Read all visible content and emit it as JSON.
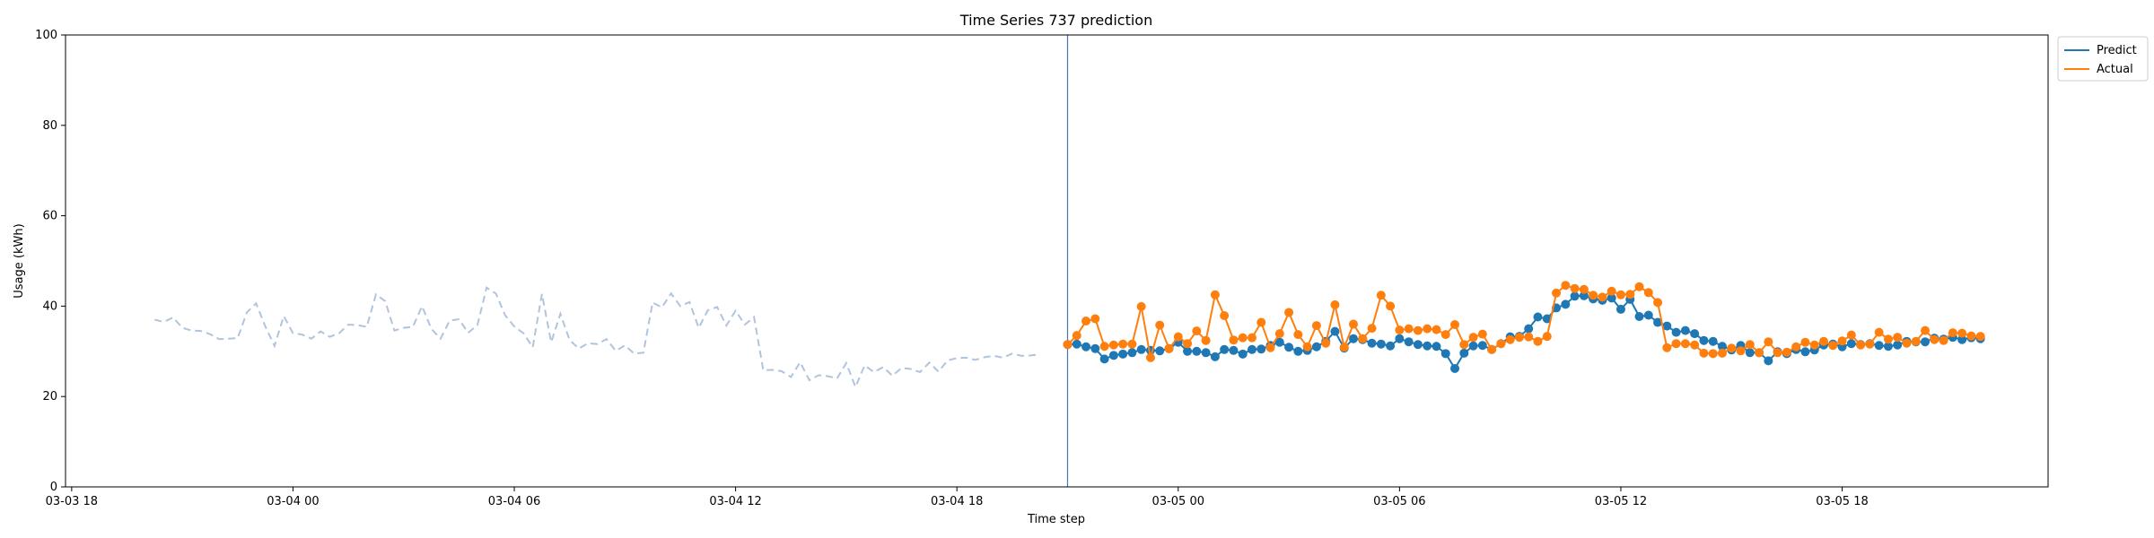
{
  "chart_data": {
    "type": "line",
    "title": "Time Series 737 prediction",
    "xlabel": "Time step",
    "ylabel": "Usage (kWh)",
    "ylim": [
      0,
      100
    ],
    "yticks": [
      0,
      20,
      40,
      60,
      80,
      100
    ],
    "xticks": [
      "03-03 18",
      "03-04 00",
      "03-04 06",
      "03-04 12",
      "03-04 18",
      "03-05 00",
      "03-05 06",
      "03-05 12",
      "03-05 18"
    ],
    "time_step": "15 min",
    "legend": {
      "placement": "upper-right-outside",
      "entries": [
        "Predict",
        "Actual"
      ]
    },
    "colors": {
      "history": "#b0c4de",
      "predict": "#1f77b4",
      "actual": "#ff7f0e",
      "divider": "#4c72b0"
    },
    "prediction_start": "03-04 21:00",
    "series": [
      {
        "name": "",
        "role": "history",
        "start": "03-03 20:15",
        "values": [
          37.0,
          36.5,
          37.5,
          35.2,
          34.6,
          34.5,
          33.8,
          32.7,
          32.8,
          32.9,
          38.6,
          40.6,
          35.5,
          31.2,
          37.8,
          34.0,
          33.7,
          32.8,
          34.4,
          33.2,
          34.0,
          35.9,
          35.8,
          35.4,
          42.6,
          41.1,
          34.6,
          35.2,
          35.4,
          40.0,
          35.0,
          32.8,
          36.8,
          37.1,
          34.1,
          35.8,
          44.1,
          42.8,
          38.0,
          35.5,
          34.0,
          30.9,
          42.7,
          32.0,
          38.3,
          32.5,
          30.6,
          31.8,
          31.6,
          32.7,
          30.1,
          31.3,
          29.5,
          29.7,
          40.8,
          39.7,
          42.8,
          40.0,
          40.9,
          35.2,
          39.1,
          39.8,
          35.7,
          39.0,
          35.9,
          37.6,
          25.8,
          25.9,
          25.6,
          24.3,
          27.6,
          23.6,
          24.7,
          24.5,
          24.0,
          27.4,
          22.1,
          26.9,
          25.4,
          26.5,
          24.6,
          26.3,
          26.1,
          25.4,
          27.5,
          25.5,
          28.0,
          28.5,
          28.6,
          28.1,
          28.7,
          29.0,
          28.6,
          29.5,
          29.0,
          29.1,
          29.3
        ]
      },
      {
        "name": "Predict",
        "role": "predict",
        "start": "03-04 21:00",
        "values": [
          31.5,
          31.6,
          31.0,
          30.6,
          28.3,
          29.1,
          29.4,
          29.7,
          30.4,
          30.2,
          30.1,
          30.6,
          32.0,
          30.0,
          30.0,
          29.7,
          28.8,
          30.4,
          30.2,
          29.4,
          30.4,
          30.5,
          31.3,
          32.0,
          30.9,
          30.0,
          30.2,
          31.0,
          32.2,
          34.4,
          30.7,
          32.8,
          32.6,
          31.8,
          31.6,
          31.2,
          32.8,
          32.1,
          31.5,
          31.2,
          31.1,
          29.5,
          26.2,
          29.6,
          31.2,
          31.3,
          30.4,
          31.7,
          33.2,
          33.3,
          35.0,
          37.6,
          37.2,
          39.6,
          40.4,
          42.2,
          42.3,
          41.6,
          41.3,
          41.8,
          39.3,
          41.5,
          37.7,
          38.0,
          36.4,
          35.6,
          34.2,
          34.6,
          33.9,
          32.4,
          32.2,
          31.1,
          30.3,
          31.3,
          29.7,
          29.7,
          27.9,
          29.9,
          29.5,
          30.4,
          29.9,
          30.3,
          31.4,
          31.6,
          31.0,
          31.7,
          31.5,
          31.7,
          31.3,
          31.1,
          31.4,
          32.2,
          32.1,
          32.1,
          32.9,
          32.7,
          33.1,
          32.6,
          33.0,
          32.8
        ]
      },
      {
        "name": "Actual",
        "role": "actual",
        "start": "03-04 21:00",
        "values": [
          31.5,
          33.5,
          36.7,
          37.2,
          31.1,
          31.4,
          31.6,
          31.6,
          39.9,
          28.6,
          35.8,
          30.6,
          33.2,
          31.7,
          34.5,
          32.4,
          42.5,
          37.9,
          32.5,
          33.0,
          33.0,
          36.4,
          30.8,
          33.9,
          38.6,
          33.7,
          31.0,
          35.7,
          31.8,
          40.3,
          30.9,
          36.0,
          32.8,
          35.1,
          42.4,
          40.0,
          34.7,
          35.0,
          34.6,
          35.0,
          34.8,
          33.7,
          35.9,
          31.5,
          33.1,
          33.8,
          30.4,
          31.7,
          32.6,
          33.1,
          33.2,
          32.2,
          33.3,
          42.9,
          44.6,
          43.9,
          43.7,
          42.4,
          42.0,
          43.3,
          42.5,
          42.6,
          44.3,
          43.0,
          40.8,
          30.8,
          31.7,
          31.7,
          31.4,
          29.6,
          29.5,
          29.6,
          30.7,
          30.1,
          31.5,
          29.7,
          32.1,
          29.7,
          29.8,
          31.0,
          32.0,
          31.4,
          32.2,
          31.3,
          32.3,
          33.6,
          31.4,
          31.6,
          34.2,
          32.7,
          33.1,
          31.8,
          32.2,
          34.6,
          32.6,
          32.4,
          34.1,
          34.0,
          33.4,
          33.3
        ]
      }
    ]
  }
}
